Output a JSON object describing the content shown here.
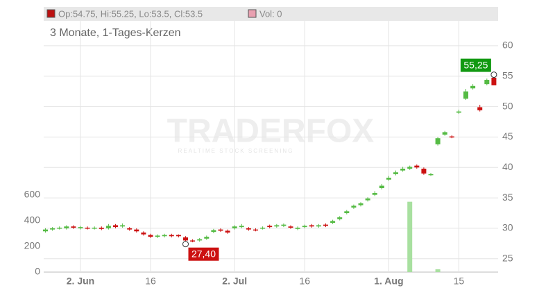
{
  "chart_data": {
    "type": "candlestick",
    "header_ohlc": "Op:54.75, Hi:55.25, Lo:53.5, Cl:53.5",
    "header_volume": "Vol: 0",
    "subtitle": "3 Monate, 1-Tages-Kerzen",
    "watermark": "TRADERFOX",
    "watermark_sub": "REALTIME STOCK SCREENING",
    "categories": [
      null,
      null,
      null,
      null,
      null,
      "2. Jun",
      null,
      null,
      null,
      null,
      null,
      null,
      null,
      null,
      null,
      "16",
      null,
      null,
      null,
      null,
      null,
      null,
      null,
      null,
      null,
      null,
      null,
      "2. Jul",
      null,
      null,
      null,
      null,
      null,
      null,
      null,
      null,
      null,
      "16",
      null,
      null,
      null,
      null,
      null,
      null,
      null,
      null,
      null,
      null,
      null,
      "1. Aug",
      null,
      null,
      null,
      null,
      null,
      null,
      null,
      null,
      null,
      "15",
      null,
      null,
      null,
      null,
      null
    ],
    "open": [
      29.5,
      29.8,
      30.0,
      30.0,
      30.3,
      30.0,
      30.1,
      30.0,
      30.1,
      30.0,
      30.5,
      30.3,
      30.0,
      29.8,
      29.3,
      28.9,
      28.6,
      28.7,
      28.9,
      28.9,
      28.5,
      28.0,
      28.0,
      28.3,
      29.4,
      29.8,
      29.6,
      30.0,
      30.2,
      30.0,
      29.8,
      30.0,
      30.4,
      30.3,
      30.4,
      30.3,
      29.9,
      30.2,
      30.5,
      30.3,
      30.6,
      30.9,
      31.5,
      32.5,
      33.4,
      33.8,
      34.6,
      35.5,
      36.6,
      38.0,
      38.9,
      39.5,
      39.8,
      40.3,
      39.8,
      38.8,
      43.8,
      45.4,
      45.1,
      49.0,
      51.3,
      53.0,
      49.9,
      53.7,
      54.75
    ],
    "high": [
      30.0,
      30.2,
      30.3,
      30.5,
      30.5,
      30.4,
      30.3,
      30.3,
      30.3,
      30.7,
      30.7,
      30.8,
      30.2,
      30.0,
      29.5,
      29.1,
      29.0,
      29.1,
      29.1,
      29.0,
      28.7,
      28.2,
      28.4,
      28.8,
      29.9,
      30.0,
      29.8,
      30.5,
      30.7,
      30.2,
      30.0,
      30.3,
      30.6,
      30.7,
      30.8,
      30.5,
      30.3,
      30.6,
      30.7,
      30.7,
      30.8,
      31.4,
      32.0,
      33.0,
      33.9,
      34.3,
      35.1,
      36.1,
      37.3,
      38.6,
      39.5,
      40.1,
      40.3,
      40.5,
      40.0,
      39.1,
      45.0,
      46.0,
      45.3,
      49.5,
      52.9,
      53.7,
      50.3,
      54.6,
      55.25
    ],
    "low": [
      29.3,
      29.6,
      29.8,
      29.8,
      29.9,
      29.8,
      29.8,
      29.8,
      29.7,
      29.8,
      30.0,
      30.1,
      29.6,
      29.3,
      28.8,
      28.4,
      28.4,
      28.5,
      28.5,
      28.5,
      27.4,
      27.7,
      27.8,
      28.1,
      29.2,
      29.4,
      29.1,
      29.8,
      30.0,
      29.6,
      29.5,
      29.8,
      30.0,
      30.1,
      30.2,
      29.9,
      29.7,
      30.0,
      30.1,
      30.1,
      30.2,
      30.7,
      31.3,
      32.3,
      33.2,
      33.6,
      34.4,
      35.3,
      36.4,
      37.8,
      38.7,
      39.3,
      39.6,
      39.8,
      38.8,
      38.6,
      43.6,
      45.2,
      44.8,
      48.8,
      51.1,
      52.8,
      49.2,
      53.5,
      53.5
    ],
    "close": [
      29.8,
      30.0,
      30.1,
      30.3,
      30.1,
      30.2,
      30.0,
      30.1,
      29.9,
      30.4,
      30.2,
      30.5,
      29.8,
      29.5,
      29.0,
      28.6,
      28.8,
      28.9,
      28.7,
      28.7,
      28.0,
      27.9,
      28.2,
      28.6,
      29.7,
      29.6,
      29.3,
      30.3,
      30.4,
      29.8,
      29.7,
      30.1,
      30.2,
      30.5,
      30.6,
      30.1,
      30.1,
      30.4,
      30.3,
      30.5,
      30.4,
      31.2,
      31.8,
      32.8,
      33.7,
      34.1,
      34.9,
      35.8,
      37.0,
      38.3,
      39.2,
      39.8,
      40.1,
      40.0,
      39.0,
      38.9,
      44.8,
      45.8,
      45.0,
      49.2,
      52.5,
      53.4,
      49.4,
      54.4,
      53.5
    ],
    "volume": [
      0,
      0,
      0,
      0,
      0,
      0,
      0,
      0,
      0,
      0,
      0,
      0,
      0,
      0,
      0,
      0,
      0,
      0,
      0,
      0,
      0,
      0,
      0,
      0,
      0,
      0,
      0,
      0,
      0,
      0,
      0,
      0,
      0,
      0,
      0,
      0,
      0,
      0,
      0,
      0,
      0,
      0,
      0,
      0,
      0,
      0,
      0,
      0,
      0,
      0,
      0,
      0,
      546,
      0,
      0,
      0,
      22,
      0,
      0,
      0,
      0,
      0,
      0,
      0,
      0
    ],
    "up_color": "#55bb44",
    "down_color": "#cc1111",
    "volume_color": "#a8e0a0",
    "ylim": [
      22.8,
      64.1
    ],
    "yticks": [
      25,
      30,
      35,
      40,
      45,
      50,
      55,
      60
    ],
    "y2lim": [
      0,
      1950
    ],
    "y2ticks": [
      0,
      200,
      400,
      600
    ],
    "max_marker": {
      "value": 55.25,
      "label": "55,25",
      "color": "#119911"
    },
    "min_marker": {
      "value": 27.4,
      "label": "27,40",
      "color": "#cc1111"
    },
    "grid": true
  }
}
